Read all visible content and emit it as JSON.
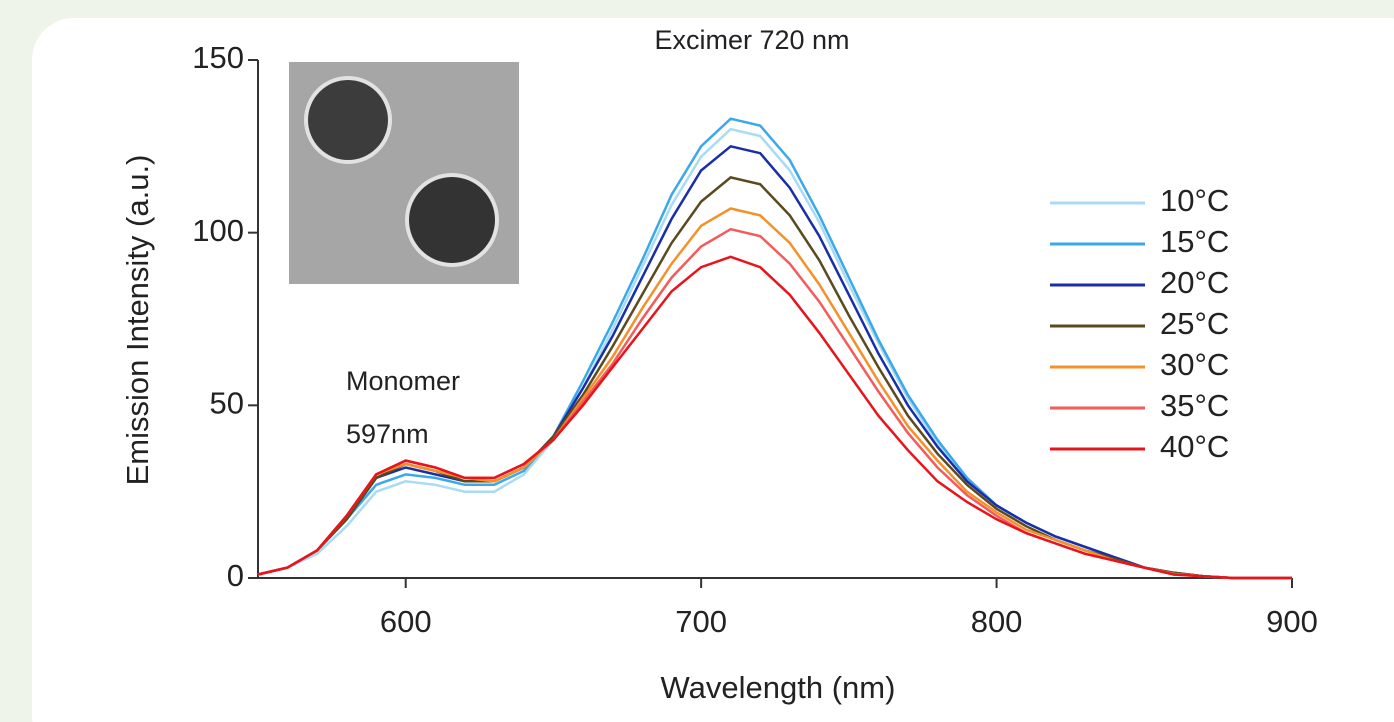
{
  "chart_data": {
    "type": "line",
    "xlabel": "Wavelength (nm)",
    "ylabel": "Emission Intensity (a.u.)",
    "annotations": [
      {
        "text": "Excimer 720 nm"
      },
      {
        "lines": [
          "Monomer",
          "597nm"
        ]
      }
    ],
    "x": [
      550,
      560,
      570,
      580,
      590,
      600,
      610,
      620,
      630,
      640,
      650,
      660,
      670,
      680,
      690,
      700,
      710,
      720,
      730,
      740,
      750,
      760,
      770,
      780,
      790,
      800,
      810,
      820,
      830,
      840,
      850,
      860,
      870,
      880,
      890,
      900
    ],
    "xlim": [
      550,
      900
    ],
    "xticks": [
      600,
      700,
      800,
      900
    ],
    "ylim": [
      0,
      150
    ],
    "yticks": [
      0,
      50,
      100,
      150
    ],
    "series": [
      {
        "name": "10°C",
        "color": "#a9dbf4",
        "values": [
          1,
          3,
          7,
          15,
          25,
          28,
          27,
          25,
          25,
          30,
          40,
          55,
          72,
          90,
          108,
          122,
          130,
          128,
          118,
          103,
          85,
          68,
          52,
          39,
          29,
          21,
          16,
          12,
          9,
          6,
          3,
          1.5,
          0.5,
          0,
          0,
          0
        ]
      },
      {
        "name": "15°C",
        "color": "#3ba9e9",
        "values": [
          1,
          3,
          8,
          17,
          27,
          30,
          29,
          27,
          27,
          31,
          41,
          57,
          74,
          92,
          111,
          125,
          133,
          131,
          121,
          105,
          87,
          69,
          53,
          40,
          29,
          21,
          16,
          12,
          9,
          6,
          3,
          1.5,
          0.5,
          0,
          0,
          0
        ]
      },
      {
        "name": "20°C",
        "color": "#1a2ea8",
        "values": [
          1,
          3,
          8,
          17,
          29,
          32,
          30,
          28,
          28,
          32,
          41,
          55,
          70,
          87,
          104,
          118,
          125,
          123,
          113,
          99,
          82,
          65,
          50,
          38,
          28,
          21,
          16,
          12,
          9,
          6,
          3,
          1.5,
          0.5,
          0,
          0,
          0
        ]
      },
      {
        "name": "25°C",
        "color": "#5b4a1f",
        "values": [
          1,
          3,
          8,
          17,
          29,
          33,
          31,
          28,
          28,
          32,
          41,
          53,
          67,
          82,
          97,
          109,
          116,
          114,
          105,
          92,
          76,
          61,
          47,
          36,
          27,
          20,
          15,
          11,
          8,
          5.5,
          3,
          1.5,
          0.5,
          0,
          0,
          0
        ]
      },
      {
        "name": "30°C",
        "color": "#f5912b",
        "values": [
          1,
          3,
          8,
          18,
          30,
          33,
          31,
          29,
          28,
          32,
          40,
          52,
          64,
          78,
          91,
          102,
          107,
          105,
          97,
          85,
          71,
          57,
          44,
          34,
          25,
          19,
          14,
          11,
          8,
          5,
          3,
          1.2,
          0.5,
          0,
          0,
          0
        ]
      },
      {
        "name": "35°C",
        "color": "#f45b5b",
        "values": [
          1,
          3,
          8,
          18,
          30,
          34,
          32,
          29,
          29,
          33,
          40,
          51,
          62,
          75,
          87,
          96,
          101,
          99,
          91,
          80,
          67,
          54,
          42,
          32,
          24,
          18,
          13,
          10,
          7,
          5,
          3,
          1,
          0.5,
          0,
          0,
          0
        ]
      },
      {
        "name": "40°C",
        "color": "#e8141c",
        "values": [
          1,
          3,
          8,
          18,
          30,
          34,
          32,
          29,
          29,
          33,
          40,
          50,
          61,
          72,
          83,
          90,
          93,
          90,
          82,
          71,
          59,
          47,
          37,
          28,
          22,
          17,
          13,
          10,
          7,
          5,
          3,
          1,
          0.5,
          0,
          0,
          0
        ]
      }
    ]
  }
}
